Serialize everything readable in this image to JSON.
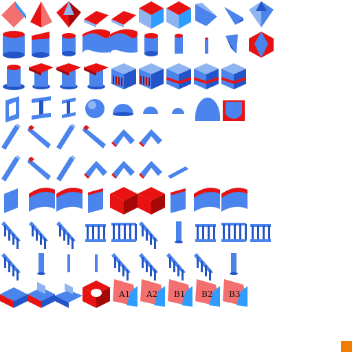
{
  "palette": {
    "blue_light": "#8fb4f2",
    "blue": "#4a84ec",
    "blue_dark": "#2455c8",
    "red": "#e81212",
    "red_dark": "#a60808",
    "salmon": "#f46f6f",
    "cyan": "#2f9cff",
    "orange": "#f27c00",
    "background": "#ffffff"
  },
  "rows": [
    {
      "row": "ramps",
      "items": [
        {
          "kind": "wedge-salmon"
        },
        {
          "kind": "pyramid-red"
        },
        {
          "kind": "pyramid-split"
        },
        {
          "kind": "flat-diamond"
        },
        {
          "kind": "flat-diamond"
        },
        {
          "kind": "cube-redtop"
        },
        {
          "kind": "cube-redtop"
        },
        {
          "kind": "wedge-blue"
        },
        {
          "kind": "corner-blue"
        },
        {
          "kind": "pyramid-blue"
        }
      ]
    },
    {
      "row": "cylinders",
      "items": [
        {
          "kind": "cylinder-wide"
        },
        {
          "kind": "cylinder-cut"
        },
        {
          "kind": "cylinder"
        },
        {
          "kind": "wave-wall"
        },
        {
          "kind": "wave-wall"
        },
        {
          "kind": "cylinder"
        },
        {
          "kind": "cylinder-thin"
        },
        {
          "kind": "rod"
        },
        {
          "kind": "shard"
        },
        {
          "kind": "diamond-red"
        }
      ]
    },
    {
      "row": "pedestals",
      "items": [
        {
          "kind": "pedestal"
        },
        {
          "kind": "pedestal-red"
        },
        {
          "kind": "pedestal-red"
        },
        {
          "kind": "pedestal-red"
        },
        {
          "kind": "shelf-block"
        },
        {
          "kind": "shelf-block"
        },
        {
          "kind": "shelf-block-band"
        },
        {
          "kind": "shelf-block-band"
        },
        {
          "kind": "shelf-block-band"
        }
      ]
    },
    {
      "row": "beams-domes",
      "items": [
        {
          "kind": "frame"
        },
        {
          "kind": "i-beam"
        },
        {
          "kind": "i-beam-small"
        },
        {
          "kind": "sphere"
        },
        {
          "kind": "dome"
        },
        {
          "kind": "dome-small"
        },
        {
          "kind": "dome-tiny"
        },
        {
          "kind": "quarter-dome"
        },
        {
          "kind": "sphere-red"
        }
      ]
    },
    {
      "row": "slanted-bars",
      "items": [
        {
          "kind": "bar-up"
        },
        {
          "kind": "bar-down"
        },
        {
          "kind": "bar-up"
        },
        {
          "kind": "bar-down"
        },
        {
          "kind": "bar-bend"
        },
        {
          "kind": "bar-bend"
        }
      ]
    },
    {
      "row": "slanted-bars-2",
      "items": [
        {
          "kind": "bar-up"
        },
        {
          "kind": "bar-down"
        },
        {
          "kind": "bar-up"
        },
        {
          "kind": "bar-bend"
        },
        {
          "kind": "bar-bend"
        },
        {
          "kind": "bar-bend"
        },
        {
          "kind": "bar-short"
        }
      ]
    },
    {
      "row": "curved-panels",
      "items": [
        {
          "kind": "panel"
        },
        {
          "kind": "curved-block"
        },
        {
          "kind": "curved-block"
        },
        {
          "kind": "panel-red"
        },
        {
          "kind": "box-red"
        },
        {
          "kind": "box-red"
        },
        {
          "kind": "panel-red"
        },
        {
          "kind": "curved-block"
        },
        {
          "kind": "curved-block"
        }
      ]
    },
    {
      "row": "railings",
      "items": [
        {
          "kind": "stair-rail"
        },
        {
          "kind": "stair-rail"
        },
        {
          "kind": "stair-rail"
        },
        {
          "kind": "fence"
        },
        {
          "kind": "fence-wide"
        },
        {
          "kind": "stair-rail"
        },
        {
          "kind": "post"
        },
        {
          "kind": "fence"
        },
        {
          "kind": "fence-wide"
        },
        {
          "kind": "fence"
        }
      ]
    },
    {
      "row": "railings-2",
      "items": [
        {
          "kind": "stair-rail"
        },
        {
          "kind": "post"
        },
        {
          "kind": "post-thin"
        },
        {
          "kind": "post-thin"
        },
        {
          "kind": "stair-rail"
        },
        {
          "kind": "stair-rail"
        },
        {
          "kind": "stair-rail"
        },
        {
          "kind": "stair-rail"
        },
        {
          "kind": "post"
        }
      ]
    },
    {
      "row": "bases",
      "items": [
        {
          "kind": "base-flat"
        },
        {
          "kind": "base-step"
        },
        {
          "kind": "base-step-small"
        },
        {
          "kind": "base-hollow"
        },
        {
          "kind": "tile",
          "label": "A1"
        },
        {
          "kind": "tile",
          "label": "A2"
        },
        {
          "kind": "tile",
          "label": "B1"
        },
        {
          "kind": "tile",
          "label": "B2"
        },
        {
          "kind": "tile",
          "label": "B3"
        }
      ]
    }
  ]
}
